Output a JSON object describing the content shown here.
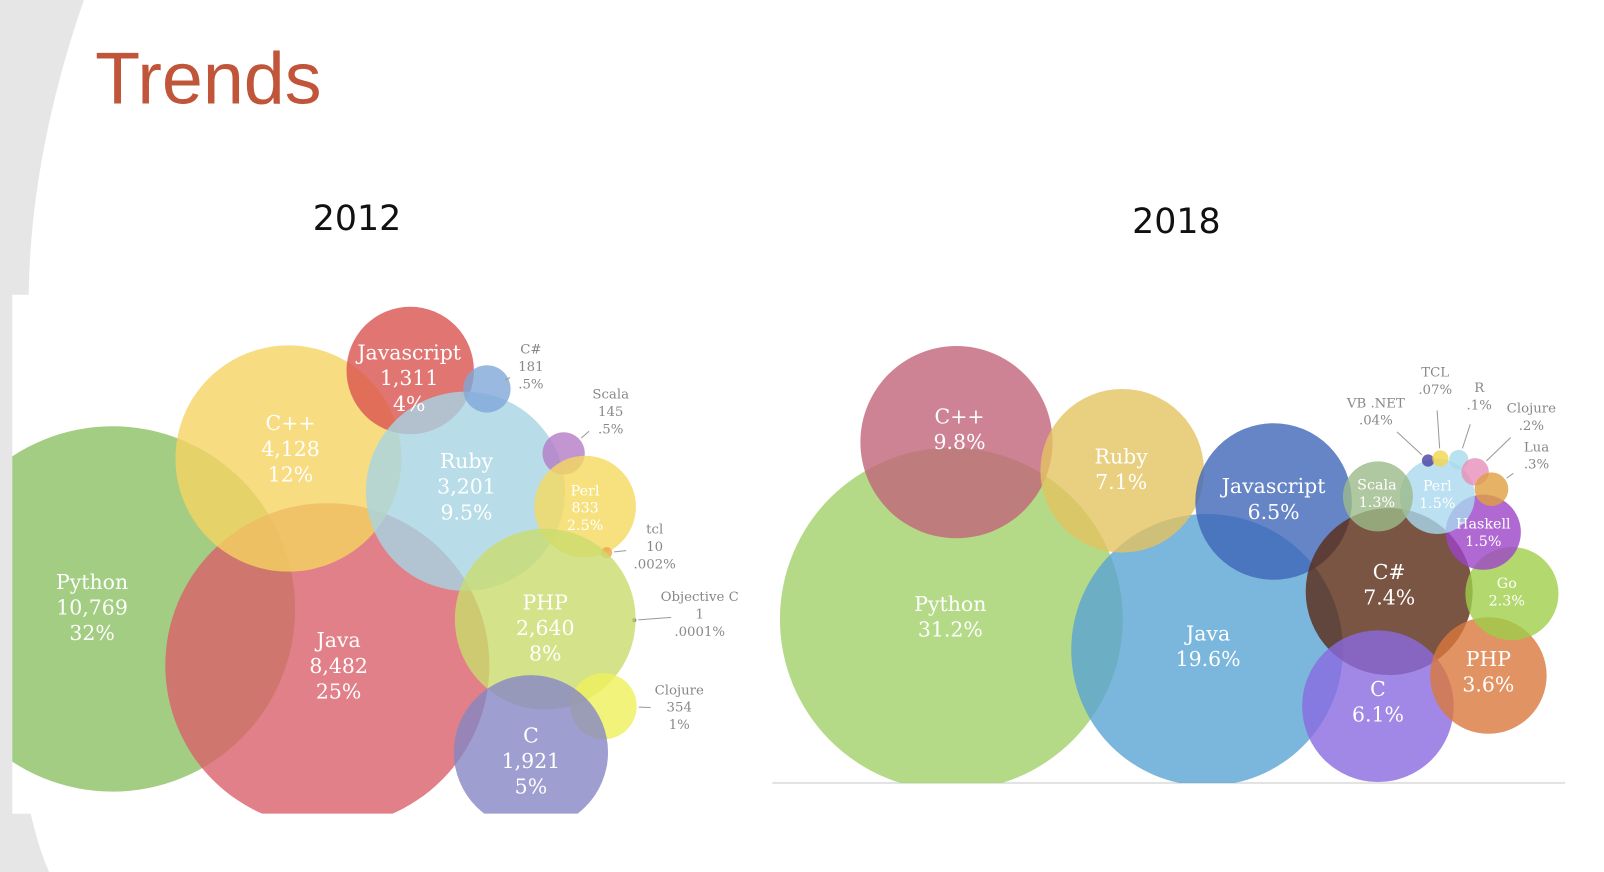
{
  "title": "Trends",
  "chart_data": [
    {
      "type": "bubble",
      "title": "2012",
      "categories": [
        "Python",
        "Java",
        "C++",
        "Javascript",
        "Ruby",
        "C#",
        "Scala",
        "Perl",
        "tcl",
        "Objective C",
        "PHP",
        "Clojure",
        "C"
      ],
      "values": [
        10769,
        8482,
        4128,
        1311,
        3201,
        181,
        145,
        833,
        10,
        1,
        2640,
        354,
        1921
      ],
      "value_labels": [
        "10,769",
        "8,482",
        "4,128",
        "1,311",
        "3,201",
        "181",
        "145",
        "833",
        "10",
        "1",
        "2,640",
        "354",
        "1,921"
      ],
      "shares": [
        32,
        25,
        12,
        4,
        9.5,
        0.5,
        0.5,
        2.5,
        0.002,
        0.0001,
        8,
        1,
        5
      ],
      "share_labels": [
        "32%",
        "25%",
        "12%",
        "4%",
        "9.5%",
        ".5%",
        ".5%",
        "2.5%",
        ".002%",
        ".0001%",
        "8%",
        "1%",
        "5%"
      ],
      "colors": [
        "#8cc063",
        "#d9606a",
        "#f5d361",
        "#d9534f",
        "#a6d4e3",
        "#7fa8d8",
        "#b47cc7",
        "#f5d95e",
        "#f0a24a",
        "#333333",
        "#c9dc6d",
        "#eef05a",
        "#8686c4"
      ]
    },
    {
      "type": "bubble",
      "title": "2018",
      "categories": [
        "Python",
        "Java",
        "C++",
        "Ruby",
        "Javascript",
        "C#",
        "C",
        "PHP",
        "Go",
        "Haskell",
        "Perl",
        "Scala",
        "VB .NET",
        "TCL",
        "R",
        "Clojure",
        "Lua"
      ],
      "values": [
        31.2,
        19.6,
        9.8,
        7.1,
        6.5,
        7.4,
        6.1,
        3.6,
        2.3,
        1.5,
        1.5,
        1.3,
        0.04,
        0.07,
        0.1,
        0.2,
        0.3
      ],
      "value_labels": [
        "31.2%",
        "19.6%",
        "9.8%",
        "7.1%",
        "6.5%",
        "7.4%",
        "6.1%",
        "3.6%",
        "2.3%",
        "1.5%",
        "1.5%",
        "1.3%",
        ".04%",
        ".07%",
        ".1%",
        ".2%",
        ".3%"
      ],
      "colors": [
        "#a1d16a",
        "#5aa4d3",
        "#c2647b",
        "#e3c360",
        "#3e67b8",
        "#5a2a14",
        "#8a6ae0",
        "#d9783c",
        "#9fce4a",
        "#9c43c7",
        "#a9d8ee",
        "#9cba8a",
        "#4b3fa0",
        "#f3d44b",
        "#a7dbec",
        "#e78fb8",
        "#e0a040"
      ]
    }
  ]
}
